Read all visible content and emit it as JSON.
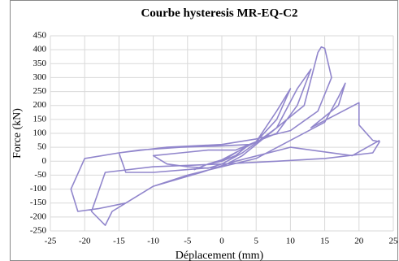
{
  "chart_data": {
    "type": "line",
    "title": "Courbe hysteresis MR-EQ-C2",
    "x_label": "Déplacement (mm)",
    "y_label": "Force (kN)",
    "series": [
      {
        "name": "MR-EQ-C2",
        "color": "#9186cc",
        "x": [
          0,
          2,
          4,
          2,
          0,
          -2,
          -4,
          -2,
          0,
          5,
          8,
          10,
          8,
          5,
          2,
          -2,
          -6,
          -10,
          -8,
          -5,
          -2,
          0,
          3,
          8,
          11,
          13,
          11,
          8,
          4,
          0,
          -6,
          -12,
          -15,
          -14,
          -10,
          -5,
          0,
          3,
          12,
          14,
          14.5,
          15,
          16,
          14,
          10,
          5,
          0,
          -8,
          -15,
          -20,
          -22,
          -21,
          -18,
          -14,
          -10,
          -5,
          0,
          5,
          15,
          17,
          18,
          17,
          13,
          20,
          20,
          22,
          23,
          22,
          15,
          8,
          0,
          -10,
          -17,
          -19,
          -17,
          -16,
          -10,
          -3,
          2,
          10,
          19,
          23
        ],
        "values": [
          0,
          30,
          60,
          20,
          0,
          -10,
          -30,
          -10,
          5,
          70,
          180,
          260,
          150,
          70,
          40,
          40,
          30,
          20,
          -10,
          -20,
          -25,
          -10,
          30,
          120,
          260,
          330,
          200,
          100,
          60,
          55,
          50,
          40,
          30,
          -40,
          -40,
          -30,
          -20,
          20,
          200,
          390,
          410,
          405,
          300,
          180,
          110,
          80,
          60,
          50,
          30,
          10,
          -100,
          -180,
          -170,
          -150,
          -90,
          -50,
          -20,
          10,
          140,
          230,
          280,
          200,
          120,
          210,
          130,
          75,
          70,
          30,
          10,
          0,
          -10,
          -20,
          -40,
          -180,
          -230,
          -180,
          -90,
          -40,
          0,
          50,
          20,
          75
        ]
      }
    ],
    "xlim": [
      -25,
      25
    ],
    "xticks": [
      -25,
      -20,
      -15,
      -10,
      -5,
      0,
      5,
      10,
      15,
      20,
      25
    ],
    "ylim": [
      -250,
      450
    ],
    "yticks": [
      -250,
      -200,
      -150,
      -100,
      -50,
      0,
      50,
      100,
      150,
      200,
      250,
      300,
      350,
      400,
      450
    ],
    "grid": true
  }
}
